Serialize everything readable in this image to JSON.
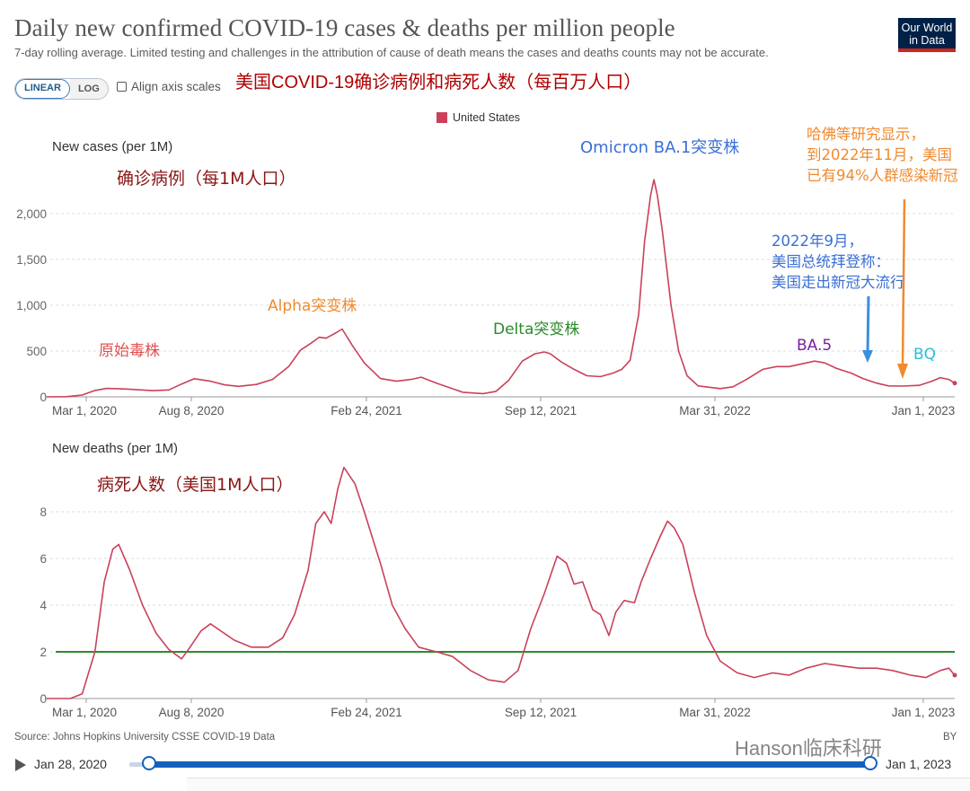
{
  "header": {
    "title": "Daily new confirmed COVID-19 cases & deaths per million people",
    "subtitle": "7-day rolling average. Limited testing and challenges in the attribution of cause of death means the cases and deaths counts may not be accurate.",
    "logo_line1": "Our World",
    "logo_line2": "in Data",
    "scale_linear": "LINEAR",
    "scale_log": "LOG",
    "align_label": "Align axis scales",
    "headline_cn": "美国COVID-19确诊病例和病死人数（每百万人口）",
    "legend_label": "United States",
    "legend_color": "#c9415a"
  },
  "footer": {
    "source": "Source: Johns Hopkins University CSSE COVID-19 Data",
    "cc": "BY",
    "watermark": "Hanson临床科研",
    "start_date": "Jan 28, 2020",
    "end_date": "Jan 1, 2023",
    "slider_color": "#1560bd"
  },
  "chart_data": [
    {
      "type": "line",
      "title": "New cases (per 1M)",
      "subtitle_cn": "确诊病例（每1M人口）",
      "x_ticks": [
        "Mar 1, 2020",
        "Aug 8, 2020",
        "Feb 24, 2021",
        "Sep 12, 2021",
        "Mar 31, 2022",
        "Jan 1, 2023"
      ],
      "y_ticks": [
        0,
        500,
        1000,
        1500,
        2000
      ],
      "y_tick_labels": [
        "0",
        "500",
        "1,000",
        "1,500",
        "2,000"
      ],
      "ylim": [
        0,
        2400
      ],
      "series": [
        {
          "name": "United States",
          "color": "#c9415a",
          "points": [
            [
              "2020-01-28",
              0
            ],
            [
              "2020-02-20",
              2
            ],
            [
              "2020-03-10",
              20
            ],
            [
              "2020-03-25",
              70
            ],
            [
              "2020-04-08",
              92
            ],
            [
              "2020-05-01",
              85
            ],
            [
              "2020-06-01",
              68
            ],
            [
              "2020-06-20",
              75
            ],
            [
              "2020-07-05",
              140
            ],
            [
              "2020-07-20",
              198
            ],
            [
              "2020-08-08",
              170
            ],
            [
              "2020-08-25",
              130
            ],
            [
              "2020-09-10",
              115
            ],
            [
              "2020-10-01",
              135
            ],
            [
              "2020-10-20",
              190
            ],
            [
              "2020-11-08",
              330
            ],
            [
              "2020-11-22",
              510
            ],
            [
              "2020-12-05",
              590
            ],
            [
              "2020-12-14",
              650
            ],
            [
              "2020-12-22",
              640
            ],
            [
              "2021-01-03",
              700
            ],
            [
              "2021-01-10",
              740
            ],
            [
              "2021-01-22",
              560
            ],
            [
              "2021-02-05",
              370
            ],
            [
              "2021-02-24",
              200
            ],
            [
              "2021-03-15",
              170
            ],
            [
              "2021-04-01",
              190
            ],
            [
              "2021-04-13",
              215
            ],
            [
              "2021-05-01",
              150
            ],
            [
              "2021-06-01",
              50
            ],
            [
              "2021-06-25",
              35
            ],
            [
              "2021-07-10",
              60
            ],
            [
              "2021-07-25",
              180
            ],
            [
              "2021-08-10",
              390
            ],
            [
              "2021-08-25",
              470
            ],
            [
              "2021-09-05",
              490
            ],
            [
              "2021-09-12",
              470
            ],
            [
              "2021-09-25",
              380
            ],
            [
              "2021-10-10",
              300
            ],
            [
              "2021-10-25",
              230
            ],
            [
              "2021-11-10",
              220
            ],
            [
              "2021-11-25",
              260
            ],
            [
              "2021-12-05",
              300
            ],
            [
              "2021-12-15",
              400
            ],
            [
              "2021-12-25",
              900
            ],
            [
              "2022-01-01",
              1700
            ],
            [
              "2022-01-08",
              2200
            ],
            [
              "2022-01-12",
              2370
            ],
            [
              "2022-01-16",
              2200
            ],
            [
              "2022-01-22",
              1800
            ],
            [
              "2022-02-01",
              1000
            ],
            [
              "2022-02-10",
              500
            ],
            [
              "2022-02-20",
              230
            ],
            [
              "2022-03-05",
              120
            ],
            [
              "2022-03-31",
              90
            ],
            [
              "2022-04-15",
              110
            ],
            [
              "2022-05-01",
              190
            ],
            [
              "2022-05-20",
              300
            ],
            [
              "2022-06-05",
              330
            ],
            [
              "2022-06-20",
              330
            ],
            [
              "2022-07-05",
              360
            ],
            [
              "2022-07-20",
              390
            ],
            [
              "2022-08-01",
              370
            ],
            [
              "2022-08-15",
              310
            ],
            [
              "2022-09-01",
              260
            ],
            [
              "2022-09-15",
              200
            ],
            [
              "2022-10-01",
              150
            ],
            [
              "2022-10-15",
              120
            ],
            [
              "2022-11-01",
              118
            ],
            [
              "2022-11-20",
              125
            ],
            [
              "2022-12-05",
              170
            ],
            [
              "2022-12-15",
              210
            ],
            [
              "2022-12-25",
              190
            ],
            [
              "2023-01-01",
              150
            ]
          ]
        }
      ],
      "annotations": [
        {
          "text": "原始毒株",
          "color": "#e05050"
        },
        {
          "text": "Alpha突变株",
          "color": "#f08a2e"
        },
        {
          "text": "Delta突变株",
          "color": "#2a8a2a"
        },
        {
          "text": "Omicron BA.1突变株",
          "color": "#3b6fd6"
        },
        {
          "text": "BA.5",
          "color": "#7a1fa2"
        },
        {
          "text": "BQ",
          "color": "#28c0d8"
        },
        {
          "lines": [
            "2022年9月，",
            "美国总统拜登称：",
            "美国走出新冠大流行"
          ],
          "color": "#3b6fd6"
        },
        {
          "lines": [
            "哈佛等研究显示，",
            "到2022年11月，美国",
            "已有94%人群感染新冠"
          ],
          "color": "#f08a2e"
        }
      ]
    },
    {
      "type": "line",
      "title": "New deaths (per 1M)",
      "subtitle_cn": "病死人数（美国1M人口）",
      "x_ticks": [
        "Mar 1, 2020",
        "Aug 8, 2020",
        "Feb 24, 2021",
        "Sep 12, 2021",
        "Mar 31, 2022",
        "Jan 1, 2023"
      ],
      "y_ticks": [
        0,
        2,
        4,
        6,
        8
      ],
      "y_tick_labels": [
        "0",
        "2",
        "4",
        "6",
        "8"
      ],
      "ylim": [
        0,
        10
      ],
      "reference_line": {
        "y": 2,
        "color": "#2e8b2e"
      },
      "series": [
        {
          "name": "United States",
          "color": "#c9415a",
          "points": [
            [
              "2020-01-28",
              0
            ],
            [
              "2020-02-25",
              0
            ],
            [
              "2020-03-10",
              0.2
            ],
            [
              "2020-03-25",
              2.0
            ],
            [
              "2020-04-05",
              5.0
            ],
            [
              "2020-04-15",
              6.4
            ],
            [
              "2020-04-22",
              6.6
            ],
            [
              "2020-05-05",
              5.5
            ],
            [
              "2020-05-20",
              4.0
            ],
            [
              "2020-06-05",
              2.8
            ],
            [
              "2020-06-20",
              2.1
            ],
            [
              "2020-07-05",
              1.7
            ],
            [
              "2020-07-15",
              2.2
            ],
            [
              "2020-07-28",
              2.9
            ],
            [
              "2020-08-08",
              3.2
            ],
            [
              "2020-08-20",
              2.9
            ],
            [
              "2020-09-05",
              2.5
            ],
            [
              "2020-09-25",
              2.2
            ],
            [
              "2020-10-15",
              2.2
            ],
            [
              "2020-11-01",
              2.6
            ],
            [
              "2020-11-15",
              3.6
            ],
            [
              "2020-12-01",
              5.5
            ],
            [
              "2020-12-10",
              7.5
            ],
            [
              "2020-12-20",
              8.0
            ],
            [
              "2020-12-28",
              7.5
            ],
            [
              "2021-01-05",
              9.0
            ],
            [
              "2021-01-12",
              9.9
            ],
            [
              "2021-01-25",
              9.2
            ],
            [
              "2021-02-05",
              8.0
            ],
            [
              "2021-02-24",
              5.8
            ],
            [
              "2021-03-10",
              4.0
            ],
            [
              "2021-03-25",
              3.0
            ],
            [
              "2021-04-10",
              2.2
            ],
            [
              "2021-05-01",
              2.0
            ],
            [
              "2021-05-20",
              1.8
            ],
            [
              "2021-06-10",
              1.2
            ],
            [
              "2021-07-01",
              0.8
            ],
            [
              "2021-07-20",
              0.7
            ],
            [
              "2021-08-05",
              1.2
            ],
            [
              "2021-08-20",
              3.0
            ],
            [
              "2021-09-05",
              4.5
            ],
            [
              "2021-09-20",
              6.1
            ],
            [
              "2021-10-01",
              5.8
            ],
            [
              "2021-10-10",
              4.9
            ],
            [
              "2021-10-20",
              5.0
            ],
            [
              "2021-11-01",
              3.8
            ],
            [
              "2021-11-10",
              3.6
            ],
            [
              "2021-11-20",
              2.7
            ],
            [
              "2021-11-28",
              3.7
            ],
            [
              "2021-12-08",
              4.2
            ],
            [
              "2021-12-20",
              4.1
            ],
            [
              "2021-12-28",
              5.0
            ],
            [
              "2022-01-08",
              6.0
            ],
            [
              "2022-01-20",
              7.0
            ],
            [
              "2022-01-28",
              7.6
            ],
            [
              "2022-02-05",
              7.3
            ],
            [
              "2022-02-15",
              6.6
            ],
            [
              "2022-03-01",
              4.5
            ],
            [
              "2022-03-15",
              2.7
            ],
            [
              "2022-03-31",
              1.6
            ],
            [
              "2022-04-20",
              1.1
            ],
            [
              "2022-05-10",
              0.9
            ],
            [
              "2022-06-01",
              1.1
            ],
            [
              "2022-06-20",
              1.0
            ],
            [
              "2022-07-10",
              1.3
            ],
            [
              "2022-08-01",
              1.5
            ],
            [
              "2022-08-20",
              1.4
            ],
            [
              "2022-09-10",
              1.3
            ],
            [
              "2022-10-01",
              1.3
            ],
            [
              "2022-10-20",
              1.2
            ],
            [
              "2022-11-10",
              1.0
            ],
            [
              "2022-11-28",
              0.9
            ],
            [
              "2022-12-15",
              1.2
            ],
            [
              "2022-12-25",
              1.3
            ],
            [
              "2023-01-01",
              1.0
            ]
          ]
        }
      ]
    }
  ]
}
